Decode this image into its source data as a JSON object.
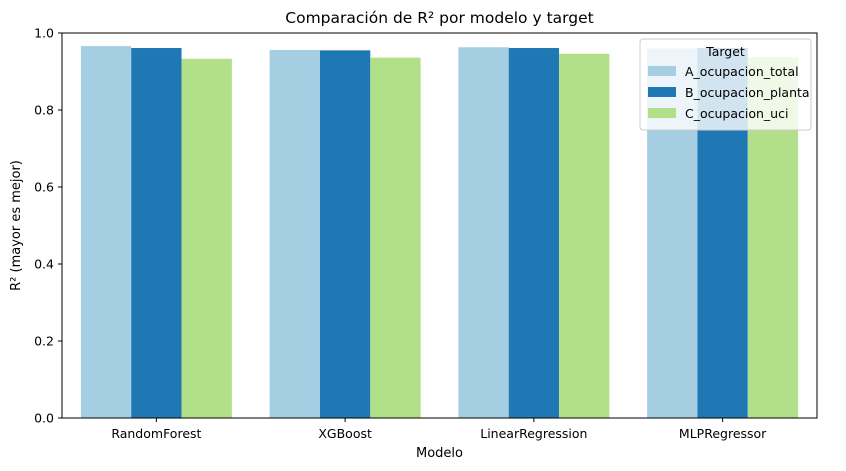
{
  "chart_data": {
    "type": "bar",
    "title": "Comparación de R² por modelo y target",
    "xlabel": "Modelo",
    "ylabel": "R² (mayor es mejor)",
    "categories": [
      "RandomForest",
      "XGBoost",
      "LinearRegression",
      "MLPRegressor"
    ],
    "series": [
      {
        "name": "A_ocupacion_total",
        "color": "#a6cee3",
        "values": [
          0.966,
          0.956,
          0.963,
          0.96
        ]
      },
      {
        "name": "B_ocupacion_planta",
        "color": "#1f78b4",
        "values": [
          0.961,
          0.955,
          0.961,
          0.961
        ]
      },
      {
        "name": "C_ocupacion_uci",
        "color": "#b2df8a",
        "values": [
          0.933,
          0.936,
          0.946,
          0.937
        ]
      }
    ],
    "ylim": [
      0,
      1.0
    ],
    "yticks": [
      "0.0",
      "0.2",
      "0.4",
      "0.6",
      "0.8",
      "1.0"
    ],
    "grid": false,
    "legend": {
      "title": "Target",
      "placement": "top-right"
    }
  }
}
